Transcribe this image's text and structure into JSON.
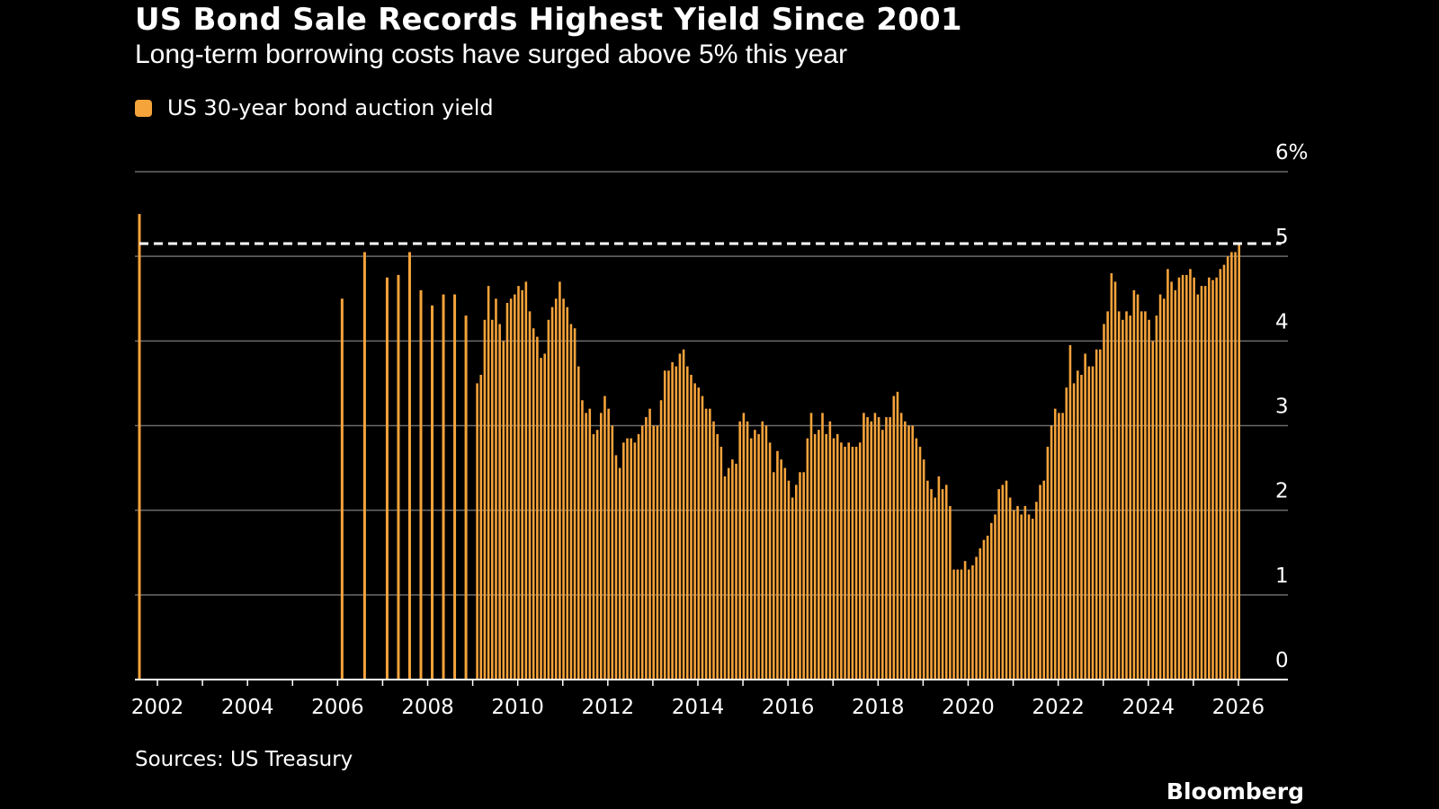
{
  "title": "US Bond Sale Records Highest Yield Since 2001",
  "subtitle": "Long-term borrowing costs have surged above 5% this year",
  "legend": {
    "label": "US 30-year bond auction yield",
    "color": "#f5a33b"
  },
  "source": "Sources: US Treasury",
  "brand": "Bloomberg",
  "colors": {
    "background": "#000000",
    "bar": "#f5a33b",
    "grid": "#6b6b6b",
    "text": "#ffffff",
    "reference_line": "#ffffff"
  },
  "chart_data": {
    "type": "bar",
    "title": "US Bond Sale Records Highest Yield Since 2001",
    "xlabel": "",
    "ylabel": "",
    "ylim": [
      0,
      6
    ],
    "xlim": [
      2001.5,
      2027.1
    ],
    "grid": true,
    "legend_position": "top-left",
    "y_ticks": [
      0,
      1,
      2,
      3,
      4,
      5,
      6
    ],
    "y_tick_labels": [
      "0",
      "1",
      "2",
      "3",
      "4",
      "5",
      "6%"
    ],
    "x_ticks": [
      2002,
      2004,
      2006,
      2008,
      2010,
      2012,
      2014,
      2016,
      2018,
      2020,
      2022,
      2024,
      2026
    ],
    "x_tick_labels": [
      "2002",
      "2004",
      "2006",
      "2008",
      "2010",
      "2012",
      "2014",
      "2016",
      "2018",
      "2020",
      "2022",
      "2024",
      "2026"
    ],
    "reference_line": {
      "y": 5.15,
      "style": "dashed"
    },
    "series": [
      {
        "name": "US 30-year bond auction yield",
        "sparse_points": [
          [
            2001.6,
            5.5
          ],
          [
            2006.1,
            4.5
          ],
          [
            2006.6,
            5.05
          ],
          [
            2007.1,
            4.75
          ],
          [
            2007.35,
            4.78
          ],
          [
            2007.6,
            5.05
          ],
          [
            2007.85,
            4.6
          ],
          [
            2008.1,
            4.42
          ],
          [
            2008.35,
            4.55
          ],
          [
            2008.6,
            4.55
          ],
          [
            2008.85,
            4.3
          ]
        ],
        "monthly_start": 2009.1,
        "monthly_step": 0.08333,
        "monthly_values": [
          3.5,
          3.6,
          4.25,
          4.65,
          4.25,
          4.5,
          4.2,
          4.0,
          4.45,
          4.5,
          4.55,
          4.65,
          4.6,
          4.7,
          4.35,
          4.15,
          4.05,
          3.8,
          3.85,
          4.25,
          4.4,
          4.5,
          4.7,
          4.5,
          4.4,
          4.2,
          4.15,
          3.7,
          3.3,
          3.15,
          3.2,
          2.9,
          2.95,
          3.15,
          3.35,
          3.2,
          3.0,
          2.65,
          2.5,
          2.8,
          2.85,
          2.85,
          2.8,
          2.9,
          3.0,
          3.1,
          3.2,
          3.0,
          3.0,
          3.3,
          3.65,
          3.65,
          3.75,
          3.7,
          3.85,
          3.9,
          3.7,
          3.6,
          3.5,
          3.45,
          3.35,
          3.2,
          3.2,
          3.05,
          2.9,
          2.75,
          2.4,
          2.5,
          2.6,
          2.55,
          3.05,
          3.15,
          3.05,
          2.85,
          2.95,
          2.9,
          3.05,
          3.0,
          2.8,
          2.45,
          2.7,
          2.6,
          2.5,
          2.35,
          2.15,
          2.3,
          2.45,
          2.45,
          2.85,
          3.15,
          2.9,
          2.95,
          3.15,
          2.9,
          3.05,
          2.85,
          2.9,
          2.8,
          2.75,
          2.8,
          2.75,
          2.75,
          2.8,
          3.15,
          3.1,
          3.05,
          3.15,
          3.1,
          2.95,
          3.1,
          3.1,
          3.35,
          3.4,
          3.15,
          3.05,
          3.0,
          3.0,
          2.85,
          2.75,
          2.6,
          2.35,
          2.25,
          2.15,
          2.4,
          2.25,
          2.3,
          2.05,
          1.3,
          1.3,
          1.3,
          1.4,
          1.3,
          1.35,
          1.45,
          1.55,
          1.65,
          1.7,
          1.85,
          1.95,
          2.25,
          2.3,
          2.35,
          2.15,
          2.0,
          2.05,
          1.95,
          2.05,
          1.95,
          1.9,
          2.1,
          2.3,
          2.35,
          2.75,
          3.0,
          3.2,
          3.15,
          3.15,
          3.45,
          3.95,
          3.5,
          3.65,
          3.6,
          3.85,
          3.7,
          3.7,
          3.9,
          3.9,
          4.2,
          4.35,
          4.8,
          4.7,
          4.35,
          4.25,
          4.35,
          4.3,
          4.6,
          4.55,
          4.35,
          4.35,
          4.25,
          4.0,
          4.3,
          4.55,
          4.5,
          4.85,
          4.7,
          4.6,
          4.75,
          4.78,
          4.78,
          4.85,
          4.75,
          4.55,
          4.65,
          4.65,
          4.75,
          4.72,
          4.75,
          4.85,
          4.9,
          5.0,
          5.05,
          5.05,
          5.15
        ]
      }
    ]
  }
}
